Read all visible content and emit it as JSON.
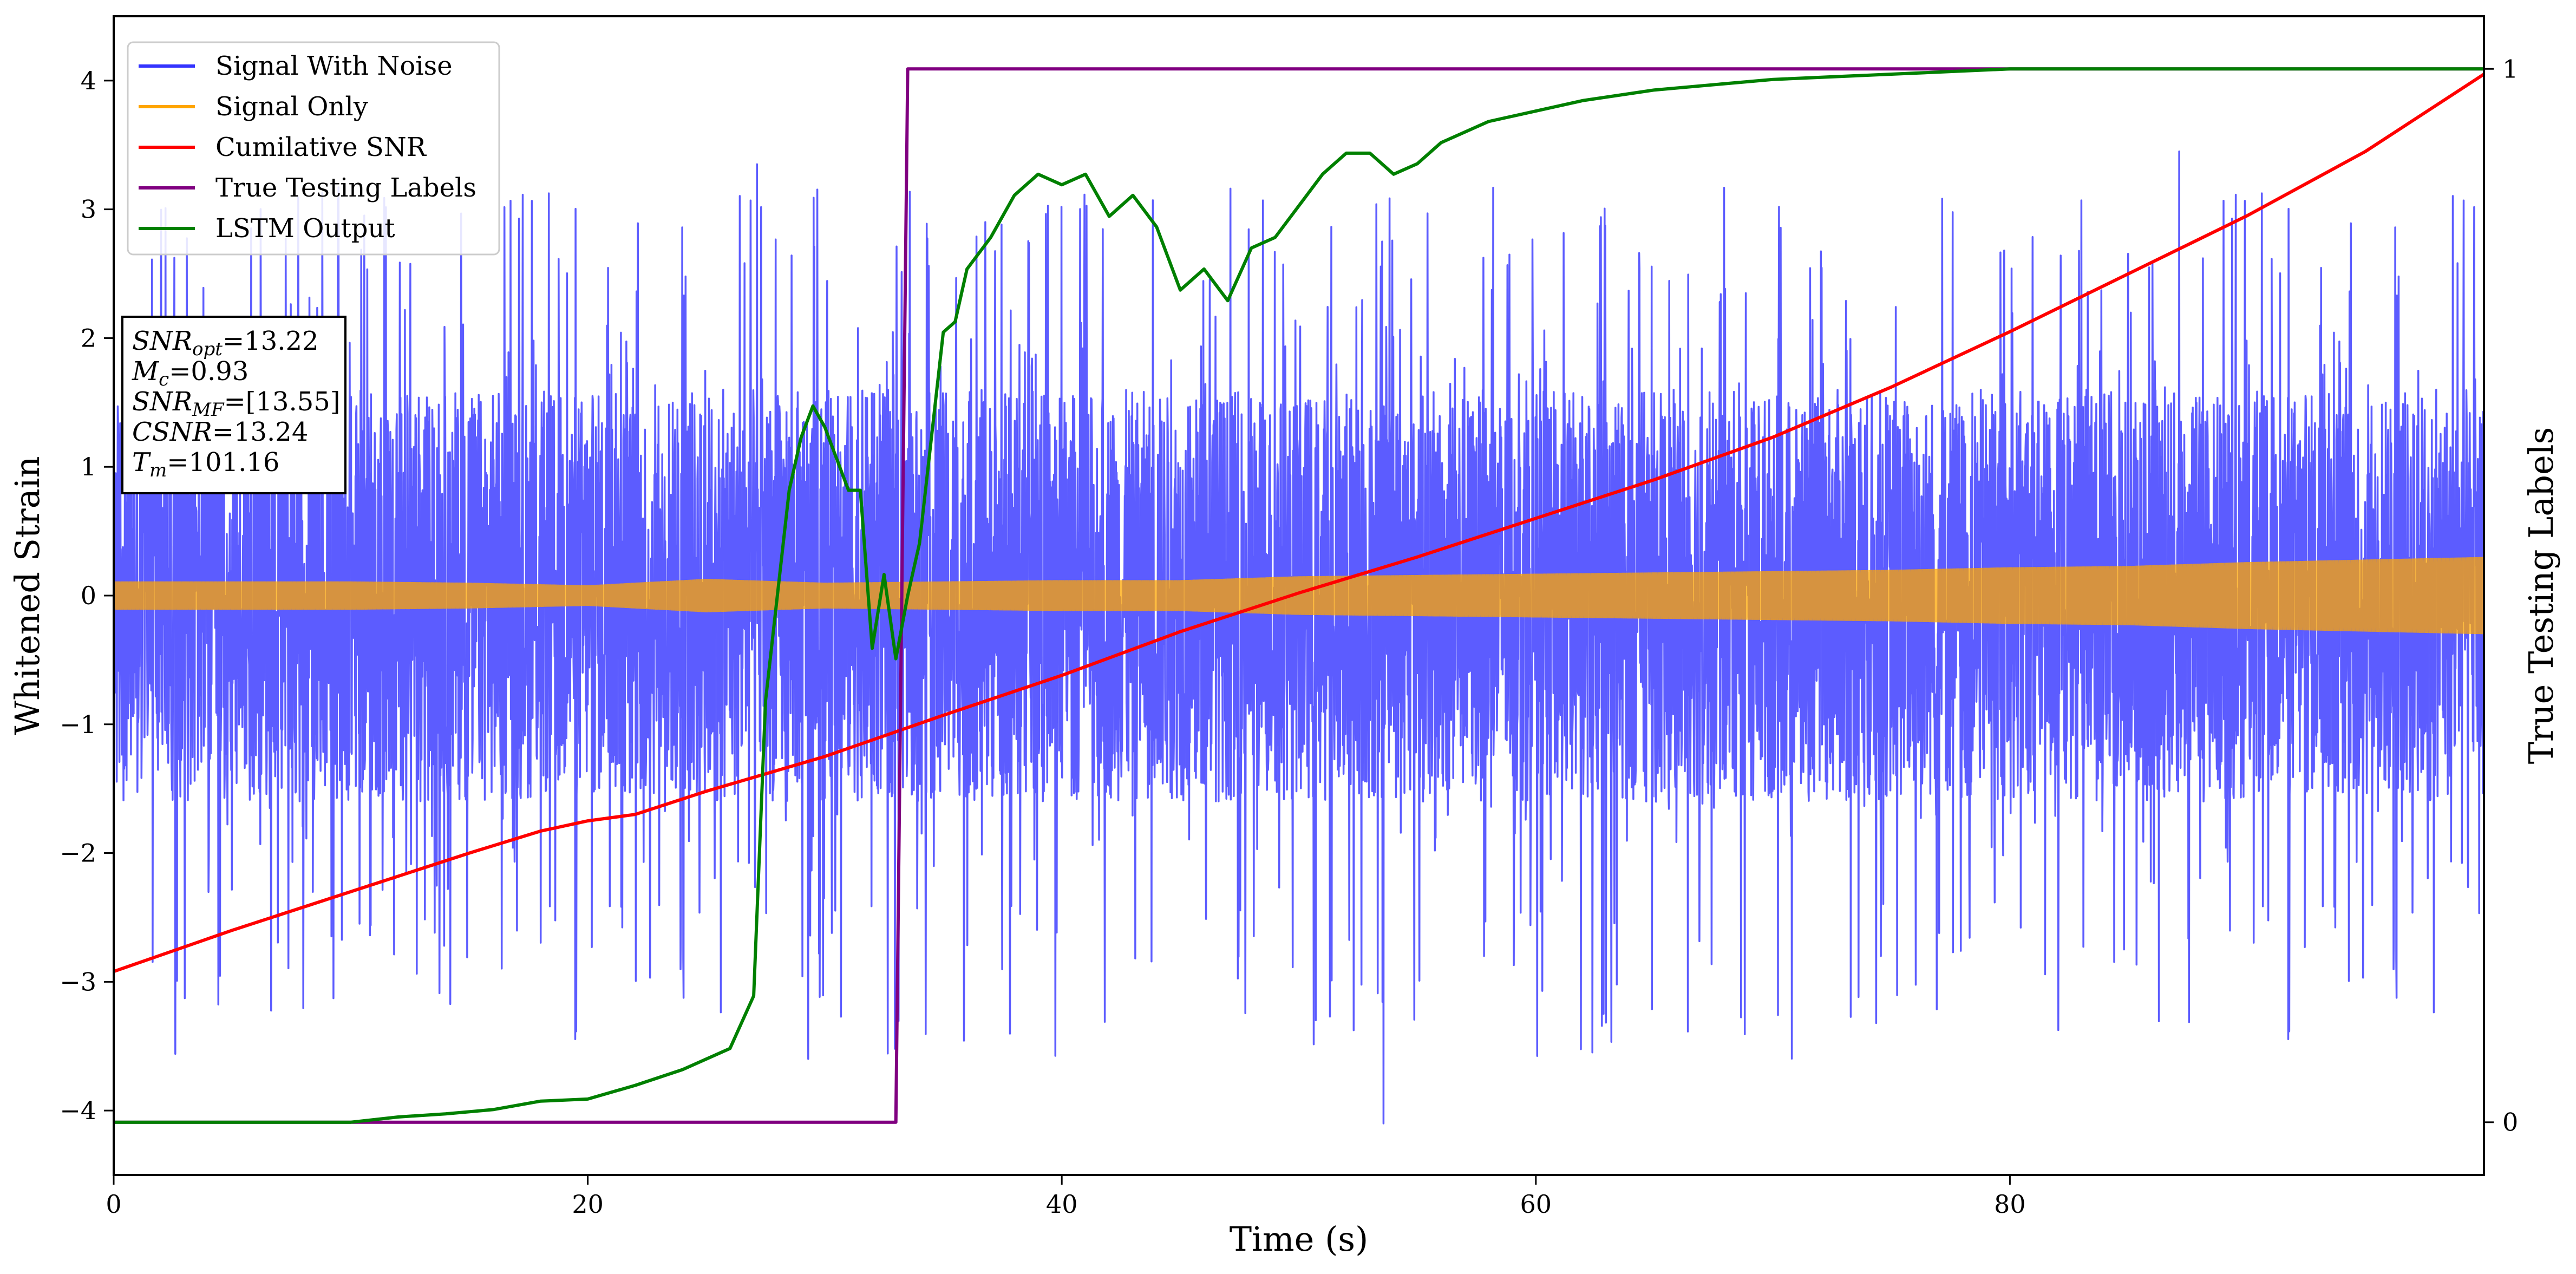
{
  "chart_data": {
    "type": "line",
    "title": "",
    "xlabel": "Time (s)",
    "ylabel": "Whitened Strain",
    "y2label": "True Testing Labels",
    "xlim": [
      0,
      100
    ],
    "ylim": [
      -4.5,
      4.5
    ],
    "y2lim": [
      -0.05,
      1.05
    ],
    "x_ticks": [
      0,
      20,
      40,
      60,
      80
    ],
    "y_ticks": [
      -4,
      -3,
      -2,
      -1,
      0,
      1,
      2,
      3,
      4
    ],
    "y2_ticks": [
      0,
      1
    ],
    "tick_labels": {
      "x": [
        "0",
        "20",
        "40",
        "60",
        "80"
      ],
      "y": [
        "−4",
        "−3",
        "−2",
        "−1",
        "0",
        "1",
        "2",
        "3",
        "4"
      ],
      "y2": [
        "0",
        "1"
      ]
    },
    "legend_position": "top-left",
    "series": [
      {
        "name": "Signal With Noise",
        "color": "#3333ff",
        "axis": "left",
        "kind": "noise",
        "x_range": [
          0,
          100
        ],
        "typical_low": -1.6,
        "typical_high": 1.6,
        "extreme_low": -4.1,
        "extreme_high": 3.45
      },
      {
        "name": "Signal Only",
        "color": "#ffa500",
        "axis": "left",
        "kind": "band",
        "x": [
          0,
          10,
          15,
          20,
          25,
          30,
          35,
          40,
          45,
          50,
          55,
          60,
          65,
          70,
          75,
          80,
          85,
          90,
          95,
          100
        ],
        "amplitude": [
          0.11,
          0.11,
          0.1,
          0.08,
          0.13,
          0.1,
          0.11,
          0.12,
          0.12,
          0.15,
          0.16,
          0.17,
          0.18,
          0.19,
          0.2,
          0.22,
          0.23,
          0.26,
          0.28,
          0.3
        ]
      },
      {
        "name": "Cumilative SNR",
        "color": "#ff0000",
        "axis": "left",
        "kind": "line",
        "x": [
          0,
          5,
          10,
          15,
          18,
          20,
          22,
          25,
          30,
          35,
          40,
          45,
          50,
          55,
          60,
          65,
          70,
          75,
          80,
          85,
          90,
          95,
          100
        ],
        "values": [
          -2.92,
          -2.6,
          -2.3,
          -2.0,
          -1.83,
          -1.75,
          -1.7,
          -1.52,
          -1.25,
          -0.93,
          -0.62,
          -0.28,
          0.02,
          0.3,
          0.6,
          0.9,
          1.23,
          1.62,
          2.05,
          2.5,
          2.95,
          3.45,
          4.05
        ]
      },
      {
        "name": "True Testing Labels",
        "color": "#800080",
        "axis": "right",
        "kind": "line",
        "x": [
          0,
          33.0,
          33.5,
          100
        ],
        "values": [
          0,
          0,
          1,
          1
        ]
      },
      {
        "name": "LSTM Output",
        "color": "#008000",
        "axis": "right",
        "kind": "line",
        "x": [
          0,
          10,
          12,
          14,
          16,
          18,
          20,
          22,
          24,
          25,
          26,
          27,
          27.5,
          28,
          28.5,
          29,
          29.5,
          30,
          30.5,
          31,
          31.5,
          32,
          32.5,
          33,
          33.5,
          34,
          35,
          35.5,
          36,
          37,
          38,
          39,
          40,
          41,
          42,
          43,
          44,
          45,
          46,
          47,
          48,
          49,
          50,
          51,
          52,
          53,
          54,
          55,
          56,
          58,
          60,
          62,
          65,
          70,
          75,
          80,
          85,
          90,
          95,
          100
        ],
        "values": [
          0.0,
          0.0,
          0.005,
          0.008,
          0.012,
          0.02,
          0.022,
          0.035,
          0.05,
          0.06,
          0.07,
          0.12,
          0.4,
          0.5,
          0.6,
          0.65,
          0.68,
          0.66,
          0.63,
          0.6,
          0.6,
          0.45,
          0.52,
          0.44,
          0.5,
          0.55,
          0.75,
          0.76,
          0.81,
          0.84,
          0.88,
          0.9,
          0.89,
          0.9,
          0.86,
          0.88,
          0.85,
          0.79,
          0.81,
          0.78,
          0.83,
          0.84,
          0.87,
          0.9,
          0.92,
          0.92,
          0.9,
          0.91,
          0.93,
          0.95,
          0.96,
          0.97,
          0.98,
          0.99,
          0.995,
          1.0,
          1.0,
          1.0,
          1.0,
          1.0
        ]
      }
    ],
    "annotation": {
      "lines": [
        {
          "main": "SNR",
          "sub": "opt",
          "rest": "=13.22"
        },
        {
          "main": "M",
          "sub": "c",
          "rest": "=0.93"
        },
        {
          "main": "SNR",
          "sub": "MF",
          "rest": "=[13.55]"
        },
        {
          "main": "CSNR",
          "sub": "",
          "rest": "=13.24"
        },
        {
          "main": "T",
          "sub": "m",
          "rest": "=101.16"
        }
      ]
    }
  }
}
